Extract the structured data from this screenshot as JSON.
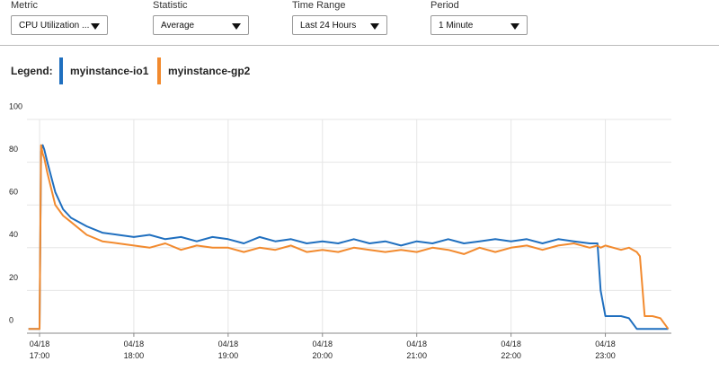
{
  "controls": [
    {
      "label": "Metric",
      "value": "CPU Utilization ..."
    },
    {
      "label": "Statistic",
      "value": "Average"
    },
    {
      "label": "Time Range",
      "value": "Last 24 Hours"
    },
    {
      "label": "Period",
      "value": "1 Minute"
    }
  ],
  "chart_data": {
    "type": "line",
    "legend_title": "Legend:",
    "x": [
      "04/18 16:53",
      "04/18 17:00",
      "04/18 17:01",
      "04/18 17:02",
      "04/18 17:03",
      "04/18 17:05",
      "04/18 17:10",
      "04/18 17:15",
      "04/18 17:20",
      "04/18 17:30",
      "04/18 17:40",
      "04/18 17:50",
      "04/18 18:00",
      "04/18 18:10",
      "04/18 18:20",
      "04/18 18:30",
      "04/18 18:40",
      "04/18 18:50",
      "04/18 19:00",
      "04/18 19:10",
      "04/18 19:20",
      "04/18 19:30",
      "04/18 19:40",
      "04/18 19:50",
      "04/18 20:00",
      "04/18 20:10",
      "04/18 20:20",
      "04/18 20:30",
      "04/18 20:40",
      "04/18 20:50",
      "04/18 21:00",
      "04/18 21:10",
      "04/18 21:20",
      "04/18 21:30",
      "04/18 21:40",
      "04/18 21:50",
      "04/18 22:00",
      "04/18 22:10",
      "04/18 22:20",
      "04/18 22:30",
      "04/18 22:40",
      "04/18 22:50",
      "04/18 22:55",
      "04/18 22:57",
      "04/18 23:00",
      "04/18 23:10",
      "04/18 23:15",
      "04/18 23:20",
      "04/18 23:22",
      "04/18 23:25",
      "04/18 23:30",
      "04/18 23:35",
      "04/18 23:40"
    ],
    "series": [
      {
        "name": "myinstance-io1",
        "color": "#1f6fbf",
        "values": [
          2,
          2,
          85,
          88,
          86,
          80,
          66,
          58,
          54,
          50,
          47,
          46,
          45,
          46,
          44,
          45,
          43,
          45,
          44,
          42,
          45,
          43,
          44,
          42,
          43,
          42,
          44,
          42,
          43,
          41,
          43,
          42,
          44,
          42,
          43,
          44,
          43,
          44,
          42,
          44,
          43,
          42,
          42,
          20,
          8,
          8,
          7,
          2,
          2,
          2,
          2,
          2,
          2
        ]
      },
      {
        "name": "myinstance-gp2",
        "color": "#f28a2e",
        "values": [
          2,
          2,
          88,
          84,
          82,
          75,
          60,
          55,
          52,
          46,
          43,
          42,
          41,
          40,
          42,
          39,
          41,
          40,
          40,
          38,
          40,
          39,
          41,
          38,
          39,
          38,
          40,
          39,
          38,
          39,
          38,
          40,
          39,
          37,
          40,
          38,
          40,
          41,
          39,
          41,
          42,
          40,
          41,
          40,
          41,
          39,
          40,
          38,
          36,
          8,
          8,
          7,
          2
        ]
      }
    ],
    "xlim": [
      "04/18 16:52",
      "04/18 23:42"
    ],
    "xticks": [
      "04/18 17:00",
      "04/18 18:00",
      "04/18 19:00",
      "04/18 20:00",
      "04/18 21:00",
      "04/18 22:00",
      "04/18 23:00"
    ],
    "ylim": [
      0,
      100
    ],
    "yticks": [
      0,
      20,
      40,
      60,
      80,
      100
    ],
    "grid": true
  }
}
